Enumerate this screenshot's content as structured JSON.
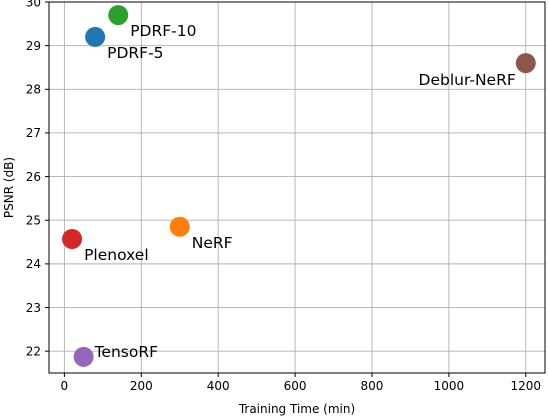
{
  "chart_data": {
    "type": "scatter",
    "xlabel": "Training Time (min)",
    "ylabel": "PSNR (dB)",
    "xlim": [
      -40,
      1250
    ],
    "ylim": [
      21.5,
      30.0
    ],
    "x_ticks": [
      0,
      200,
      400,
      600,
      800,
      1000,
      1200
    ],
    "y_ticks": [
      22,
      23,
      24,
      25,
      26,
      27,
      28,
      29,
      30
    ],
    "grid": true,
    "points": [
      {
        "name": "PDRF-10",
        "x": 140,
        "y": 29.7,
        "color": "#2ca02c",
        "label_position": "right-below"
      },
      {
        "name": "PDRF-5",
        "x": 80,
        "y": 29.2,
        "color": "#1f77b4",
        "label_position": "right-below"
      },
      {
        "name": "Deblur-NeRF",
        "x": 1200,
        "y": 28.6,
        "color": "#8c564b",
        "label_position": "left-below"
      },
      {
        "name": "NeRF",
        "x": 300,
        "y": 24.85,
        "color": "#ff7f0e",
        "label_position": "right-below"
      },
      {
        "name": "Plenoxel",
        "x": 20,
        "y": 24.57,
        "color": "#d62728",
        "label_position": "right-below"
      },
      {
        "name": "TensoRF",
        "x": 50,
        "y": 21.87,
        "color": "#9467bd",
        "label_position": "right"
      }
    ]
  }
}
